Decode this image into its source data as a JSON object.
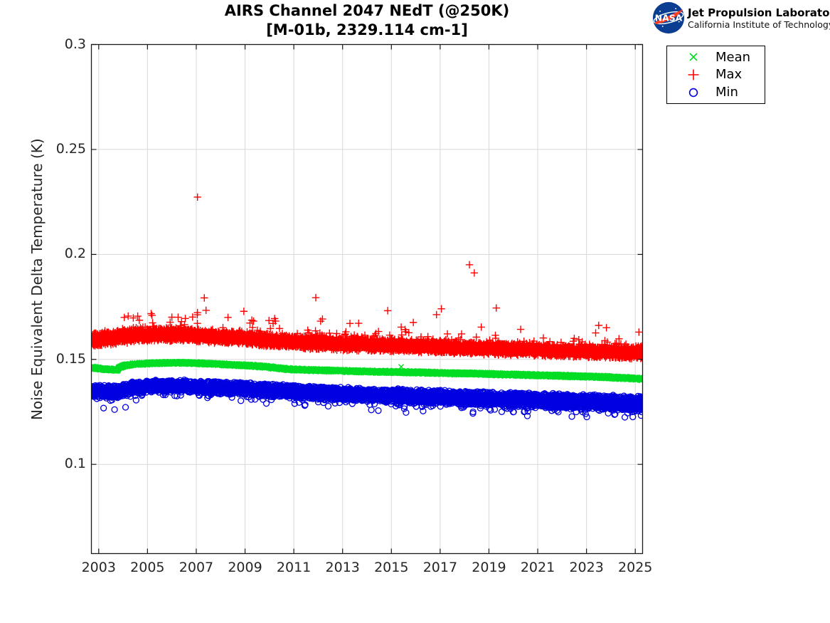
{
  "header": {
    "title_line1": "AIRS Channel 2047 NEdT (@250K)",
    "title_line2": "[M-01b, 2329.114 cm-1]",
    "logo": {
      "org": "NASA",
      "line1": "Jet Propulsion Laboratory",
      "line2": "California Institute of Technology",
      "circle_color": "#0B3D91",
      "swoosh_color": "#FC3D21"
    }
  },
  "legend": {
    "items": [
      {
        "label": "Mean",
        "marker": "x",
        "color": "#00dd22"
      },
      {
        "label": "Max",
        "marker": "+",
        "color": "#ff0000"
      },
      {
        "label": "Min",
        "marker": "o",
        "color": "#0000e0"
      }
    ]
  },
  "style": {
    "grid_color": "#d8d8d8",
    "axis_color": "#1a1a1a",
    "tick_label_color": "#262626",
    "background": "#ffffff"
  },
  "chart_data": {
    "type": "scatter",
    "title": "AIRS Channel 2047 NEdT (@250K)",
    "subtitle": "[M-01b, 2329.114 cm-1]",
    "xlabel": "",
    "ylabel": "Noise Equivalent Delta Temperature (K)",
    "xlim": [
      2002.7,
      2025.3
    ],
    "ylim": [
      0.0575,
      0.3
    ],
    "xticks": [
      2003,
      2005,
      2007,
      2009,
      2011,
      2013,
      2015,
      2017,
      2019,
      2021,
      2023,
      2025
    ],
    "yticks": [
      0.1,
      0.15,
      0.2,
      0.25,
      0.3
    ],
    "grid": true,
    "legend_position": "outside-top-right",
    "x_data_range": [
      2002.73,
      2025.27
    ],
    "series": [
      {
        "name": "Max",
        "marker": "+",
        "color": "#ff0000",
        "n_points_approx": 7400,
        "band_halfwidth": [
          0.0034,
          0.003
        ],
        "tail": "up",
        "trend": [
          [
            2002.73,
            0.1593
          ],
          [
            2003.5,
            0.1603
          ],
          [
            2004.3,
            0.1612
          ],
          [
            2005.3,
            0.1617
          ],
          [
            2006.3,
            0.1618
          ],
          [
            2007.3,
            0.1612
          ],
          [
            2008.3,
            0.1604
          ],
          [
            2009.3,
            0.1596
          ],
          [
            2010.3,
            0.1588
          ],
          [
            2011.3,
            0.1581
          ],
          [
            2012.3,
            0.1576
          ],
          [
            2013.3,
            0.1572
          ],
          [
            2014.3,
            0.1569
          ],
          [
            2015.3,
            0.1565
          ],
          [
            2016.3,
            0.1562
          ],
          [
            2017.3,
            0.1558
          ],
          [
            2018.3,
            0.1554
          ],
          [
            2019.3,
            0.1551
          ],
          [
            2020.3,
            0.1547
          ],
          [
            2021.3,
            0.1543
          ],
          [
            2022.3,
            0.1539
          ],
          [
            2023.3,
            0.1536
          ],
          [
            2024.3,
            0.1533
          ],
          [
            2025.27,
            0.1531
          ]
        ],
        "outliers": [
          [
            2004.05,
            0.17
          ],
          [
            2004.6,
            0.1706
          ],
          [
            2005.15,
            0.1718
          ],
          [
            2006.0,
            0.1701
          ],
          [
            2006.55,
            0.1695
          ],
          [
            2007.05,
            0.2273
          ],
          [
            2007.05,
            0.1723
          ],
          [
            2007.33,
            0.1793
          ],
          [
            2007.4,
            0.1734
          ],
          [
            2008.3,
            0.17
          ],
          [
            2008.95,
            0.1729
          ],
          [
            2009.35,
            0.1682
          ],
          [
            2010.15,
            0.1671
          ],
          [
            2011.9,
            0.1794
          ],
          [
            2012.1,
            0.1682
          ],
          [
            2013.3,
            0.1671
          ],
          [
            2014.85,
            0.1732
          ],
          [
            2015.9,
            0.1676
          ],
          [
            2016.85,
            0.1713
          ],
          [
            2017.05,
            0.1741
          ],
          [
            2018.2,
            0.1951
          ],
          [
            2018.4,
            0.1912
          ],
          [
            2019.3,
            0.1745
          ],
          [
            2020.3,
            0.1643
          ],
          [
            2023.5,
            0.1662
          ]
        ]
      },
      {
        "name": "Mean",
        "marker": "x",
        "color": "#00dd22",
        "n_points_approx": 7400,
        "band_halfwidth": [
          0.0007,
          0.0008
        ],
        "tail": "none",
        "trend": [
          [
            2002.73,
            0.1461
          ],
          [
            2003.2,
            0.1454
          ],
          [
            2003.75,
            0.1449
          ],
          [
            2003.85,
            0.1462
          ],
          [
            2004.1,
            0.1472
          ],
          [
            2004.6,
            0.1478
          ],
          [
            2005.5,
            0.1483
          ],
          [
            2006.5,
            0.1484
          ],
          [
            2007.5,
            0.148
          ],
          [
            2008.5,
            0.1474
          ],
          [
            2009.5,
            0.1468
          ],
          [
            2010.2,
            0.1461
          ],
          [
            2010.8,
            0.1453
          ],
          [
            2011.5,
            0.145
          ],
          [
            2012.5,
            0.1447
          ],
          [
            2013.5,
            0.1444
          ],
          [
            2014.5,
            0.1441
          ],
          [
            2015.5,
            0.1439
          ],
          [
            2016.5,
            0.1437
          ],
          [
            2017.5,
            0.1434
          ],
          [
            2018.5,
            0.1432
          ],
          [
            2019.5,
            0.1429
          ],
          [
            2020.5,
            0.1426
          ],
          [
            2021.5,
            0.1423
          ],
          [
            2022.5,
            0.142
          ],
          [
            2023.5,
            0.1417
          ],
          [
            2024.5,
            0.1412
          ],
          [
            2025.27,
            0.1407
          ]
        ],
        "outliers": [
          [
            2015.4,
            0.1465
          ]
        ]
      },
      {
        "name": "Min",
        "marker": "o",
        "color": "#0000e0",
        "n_points_approx": 7400,
        "band_halfwidth": [
          0.003,
          0.0038
        ],
        "tail": "down",
        "trend": [
          [
            2002.73,
            0.1353
          ],
          [
            2003.3,
            0.1346
          ],
          [
            2003.8,
            0.1344
          ],
          [
            2004.3,
            0.1362
          ],
          [
            2005.0,
            0.137
          ],
          [
            2005.8,
            0.1374
          ],
          [
            2006.5,
            0.1372
          ],
          [
            2007.5,
            0.1367
          ],
          [
            2008.5,
            0.1362
          ],
          [
            2009.5,
            0.1357
          ],
          [
            2010.5,
            0.1351
          ],
          [
            2011.5,
            0.1344
          ],
          [
            2012.5,
            0.1339
          ],
          [
            2013.5,
            0.1334
          ],
          [
            2014.5,
            0.133
          ],
          [
            2015.5,
            0.1326
          ],
          [
            2016.5,
            0.1322
          ],
          [
            2017.5,
            0.1318
          ],
          [
            2018.5,
            0.1314
          ],
          [
            2019.5,
            0.131
          ],
          [
            2020.5,
            0.1306
          ],
          [
            2021.5,
            0.1303
          ],
          [
            2022.5,
            0.1299
          ],
          [
            2023.5,
            0.1296
          ],
          [
            2024.5,
            0.1292
          ],
          [
            2025.27,
            0.1289
          ]
        ],
        "outliers": [
          [
            2003.2,
            0.1268
          ],
          [
            2003.65,
            0.1261
          ],
          [
            2004.1,
            0.1272
          ],
          [
            2015.6,
            0.1247
          ],
          [
            2016.3,
            0.1254
          ],
          [
            2022.4,
            0.1228
          ],
          [
            2024.15,
            0.1237
          ],
          [
            2024.9,
            0.1226
          ]
        ]
      }
    ]
  }
}
